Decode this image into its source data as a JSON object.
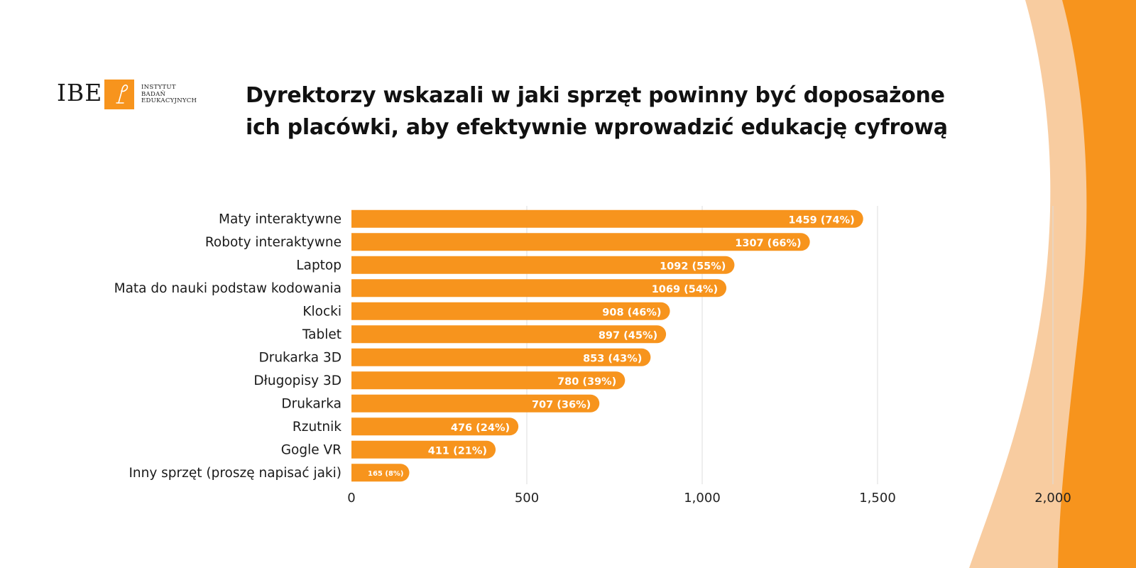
{
  "colors": {
    "bar": "#f7941d",
    "bar_label": "#ffffff",
    "grid": "#dcdcdc",
    "accent_dark": "#f7941d",
    "accent_light": "#f8cca0"
  },
  "logo": {
    "abbr": "IBE",
    "name_lines": [
      "INSTYTUT",
      "BADAŃ",
      "EDUKACYJNYCH"
    ],
    "icon": "ibe-i-icon"
  },
  "header": {
    "title_line1": "Dyrektorzy wskazali w jaki sprzęt powinny być doposażone",
    "title_line2": "ich placówki, aby efektywnie wprowadzić edukację cyfrową"
  },
  "chart_data": {
    "type": "bar",
    "orientation": "horizontal",
    "title": "Dyrektorzy wskazali w jaki sprzęt powinny być doposażone ich placówki, aby efektywnie wprowadzić edukację cyfrową",
    "categories": [
      "Maty interaktywne",
      "Roboty interaktywne",
      "Laptop",
      "Mata do nauki podstaw kodowania",
      "Klocki",
      "Tablet",
      "Drukarka 3D",
      "Długopisy 3D",
      "Drukarka",
      "Rzutnik",
      "Gogle VR",
      "Inny sprzęt (proszę napisać jaki)"
    ],
    "values": [
      1459,
      1307,
      1092,
      1069,
      908,
      897,
      853,
      780,
      707,
      476,
      411,
      165
    ],
    "data_labels": [
      "1459 (74%)",
      "1307 (66%)",
      "1092 (55%)",
      "1069 (54%)",
      "908 (46%)",
      "897 (45%)",
      "853 (43%)",
      "780 (39%)",
      "707 (36%)",
      "476 (24%)",
      "411 (21%)",
      "165 (8%)"
    ],
    "xlim": [
      0,
      2000
    ],
    "xticks": [
      0,
      500,
      1000,
      1500,
      2000
    ],
    "xtick_labels": [
      "0",
      "500",
      "1,000",
      "1,500",
      "2,000"
    ],
    "xlabel": "",
    "ylabel": "",
    "grid": true,
    "legend": "none"
  }
}
